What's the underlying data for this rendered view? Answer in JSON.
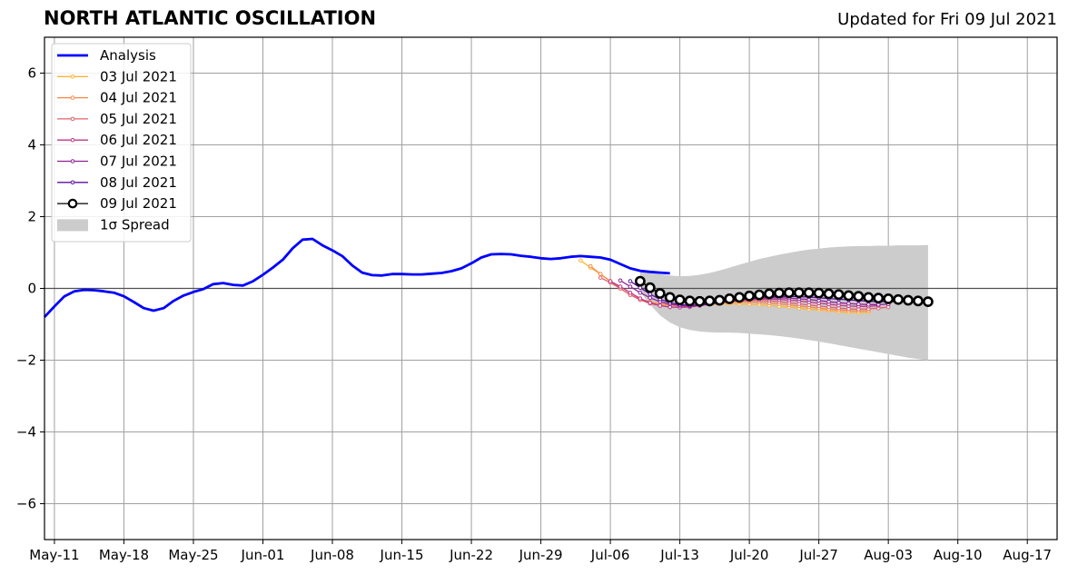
{
  "chart_data": {
    "type": "line",
    "title": "NORTH ATLANTIC OSCILLATION",
    "subtitle": "Updated for Fri 09 Jul 2021",
    "xlabel": "",
    "ylabel": "",
    "xlim": [
      "2021-05-10",
      "2021-08-20"
    ],
    "ylim": [
      -7,
      7
    ],
    "x_ticks": [
      "May-11",
      "May-18",
      "May-25",
      "Jun-01",
      "Jun-08",
      "Jun-15",
      "Jun-22",
      "Jun-29",
      "Jul-06",
      "Jul-13",
      "Jul-20",
      "Jul-27",
      "Aug-03",
      "Aug-10",
      "Aug-17"
    ],
    "x_tick_dates": [
      "2021-05-11",
      "2021-05-18",
      "2021-05-25",
      "2021-06-01",
      "2021-06-08",
      "2021-06-15",
      "2021-06-22",
      "2021-06-29",
      "2021-07-06",
      "2021-07-13",
      "2021-07-20",
      "2021-07-27",
      "2021-08-03",
      "2021-08-10",
      "2021-08-17"
    ],
    "y_ticks": [
      -6,
      -4,
      -2,
      0,
      2,
      4,
      6
    ],
    "y_tick_labels": [
      "−6",
      "−4",
      "−2",
      "0",
      "2",
      "4",
      "6"
    ],
    "grid": true,
    "legend_position": "top-left",
    "analysis": {
      "name": "Analysis",
      "color": "#0000ff",
      "start": "2021-05-10",
      "values": [
        -0.8,
        -0.5,
        -0.22,
        -0.08,
        -0.04,
        -0.05,
        -0.08,
        -0.12,
        -0.22,
        -0.38,
        -0.55,
        -0.62,
        -0.55,
        -0.35,
        -0.2,
        -0.1,
        -0.02,
        0.12,
        0.15,
        0.1,
        0.08,
        0.2,
        0.38,
        0.58,
        0.8,
        1.12,
        1.36,
        1.38,
        1.2,
        1.06,
        0.9,
        0.64,
        0.44,
        0.37,
        0.36,
        0.4,
        0.4,
        0.39,
        0.39,
        0.41,
        0.43,
        0.48,
        0.56,
        0.7,
        0.86,
        0.95,
        0.96,
        0.95,
        0.91,
        0.88,
        0.84,
        0.82,
        0.84,
        0.88,
        0.9,
        0.88,
        0.86,
        0.8,
        0.68,
        0.56,
        0.49,
        0.46,
        0.44,
        0.42
      ]
    },
    "forecasts": [
      {
        "name": "03 Jul 2021",
        "color": "#fcb536",
        "start": "2021-07-03",
        "values": [
          0.78,
          0.58,
          0.4,
          0.2,
          0.0,
          -0.18,
          -0.3,
          -0.38,
          -0.44,
          -0.47,
          -0.48,
          -0.48,
          -0.47,
          -0.45,
          -0.44,
          -0.43,
          -0.43,
          -0.44,
          -0.45,
          -0.47,
          -0.5,
          -0.52,
          -0.55,
          -0.58,
          -0.6,
          -0.62,
          -0.65,
          -0.67,
          -0.68,
          -0.66
        ]
      },
      {
        "name": "04 Jul 2021",
        "color": "#f68948",
        "start": "2021-07-04",
        "values": [
          0.62,
          0.4,
          0.2,
          0.0,
          -0.18,
          -0.3,
          -0.38,
          -0.43,
          -0.46,
          -0.47,
          -0.47,
          -0.45,
          -0.43,
          -0.41,
          -0.39,
          -0.38,
          -0.38,
          -0.39,
          -0.41,
          -0.43,
          -0.46,
          -0.49,
          -0.52,
          -0.55,
          -0.58,
          -0.6,
          -0.62,
          -0.63,
          -0.62
        ]
      },
      {
        "name": "05 Jul 2021",
        "color": "#e0616c",
        "start": "2021-07-05",
        "values": [
          0.3,
          0.16,
          0.0,
          -0.18,
          -0.32,
          -0.42,
          -0.48,
          -0.52,
          -0.52,
          -0.5,
          -0.47,
          -0.43,
          -0.4,
          -0.37,
          -0.35,
          -0.34,
          -0.34,
          -0.35,
          -0.37,
          -0.4,
          -0.43,
          -0.46,
          -0.49,
          -0.52,
          -0.55,
          -0.57,
          -0.58,
          -0.57,
          -0.55,
          -0.52
        ]
      },
      {
        "name": "06 Jul 2021",
        "color": "#bd3786",
        "start": "2021-07-06",
        "values": [
          0.2,
          0.05,
          -0.12,
          -0.28,
          -0.4,
          -0.48,
          -0.52,
          -0.53,
          -0.52,
          -0.48,
          -0.44,
          -0.4,
          -0.36,
          -0.33,
          -0.31,
          -0.3,
          -0.3,
          -0.31,
          -0.33,
          -0.35,
          -0.38,
          -0.41,
          -0.44,
          -0.47,
          -0.49,
          -0.5,
          -0.5,
          -0.48
        ]
      },
      {
        "name": "07 Jul 2021",
        "color": "#8e2196",
        "start": "2021-07-07",
        "values": [
          0.22,
          0.05,
          -0.12,
          -0.26,
          -0.37,
          -0.44,
          -0.48,
          -0.49,
          -0.47,
          -0.44,
          -0.4,
          -0.36,
          -0.32,
          -0.29,
          -0.27,
          -0.26,
          -0.26,
          -0.27,
          -0.29,
          -0.31,
          -0.34,
          -0.37,
          -0.4,
          -0.42,
          -0.44,
          -0.45,
          -0.45,
          -0.44
        ]
      },
      {
        "name": "08 Jul 2021",
        "color": "#5b0fa0",
        "start": "2021-07-08",
        "values": [
          0.2,
          0.02,
          -0.16,
          -0.3,
          -0.4,
          -0.45,
          -0.47,
          -0.46,
          -0.43,
          -0.39,
          -0.35,
          -0.31,
          -0.27,
          -0.25,
          -0.23,
          -0.22,
          -0.22,
          -0.23,
          -0.24,
          -0.26,
          -0.28,
          -0.3,
          -0.32,
          -0.34,
          -0.36,
          -0.37,
          -0.37,
          -0.37,
          -0.36
        ]
      },
      {
        "name": "09 Jul 2021",
        "color": "#000000",
        "start": "2021-07-09",
        "values": [
          0.2,
          0.02,
          -0.14,
          -0.25,
          -0.32,
          -0.35,
          -0.36,
          -0.35,
          -0.33,
          -0.29,
          -0.25,
          -0.21,
          -0.18,
          -0.15,
          -0.13,
          -0.12,
          -0.12,
          -0.12,
          -0.13,
          -0.15,
          -0.17,
          -0.2,
          -0.22,
          -0.25,
          -0.27,
          -0.29,
          -0.31,
          -0.33,
          -0.35,
          -0.37
        ]
      }
    ],
    "spread": {
      "name": "1σ Spread",
      "color": "#cccccc",
      "start": "2021-07-09",
      "upper": [
        0.5,
        0.46,
        0.4,
        0.36,
        0.34,
        0.35,
        0.38,
        0.43,
        0.5,
        0.58,
        0.66,
        0.74,
        0.82,
        0.88,
        0.94,
        0.99,
        1.04,
        1.08,
        1.11,
        1.14,
        1.16,
        1.17,
        1.18,
        1.18,
        1.19,
        1.19,
        1.2,
        1.2,
        1.2,
        1.21
      ],
      "lower": [
        -0.1,
        -0.45,
        -0.75,
        -0.95,
        -1.08,
        -1.16,
        -1.2,
        -1.22,
        -1.23,
        -1.23,
        -1.24,
        -1.26,
        -1.28,
        -1.3,
        -1.33,
        -1.36,
        -1.4,
        -1.44,
        -1.48,
        -1.53,
        -1.58,
        -1.63,
        -1.68,
        -1.73,
        -1.78,
        -1.83,
        -1.88,
        -1.93,
        -1.97,
        -2.0
      ]
    }
  }
}
